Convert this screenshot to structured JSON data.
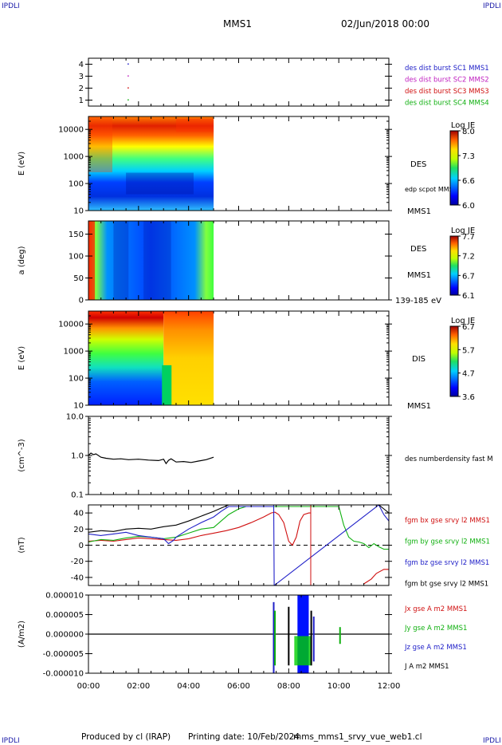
{
  "header": {
    "corner_left": "IPDLI",
    "corner_right": "IPDLI",
    "mission": "MMS1",
    "date": "02/Jun/2018 00:00"
  },
  "footer": {
    "produced_by": "Produced by cl (IRAP)",
    "printing_date": "Printing date: 10/Feb/2024",
    "file": "mms_mms1_srvy_vue_web1.cl",
    "corner_left": "IPDLI",
    "corner_right": "IPDLI"
  },
  "chart_data": [
    {
      "type": "scatter",
      "panel": "burst-availability",
      "ylim": [
        0.5,
        4.5
      ],
      "yticks": [
        "1",
        "2",
        "3",
        "4"
      ],
      "legend": [
        {
          "name": "des dist burst SC1 MMS1",
          "color": "#2020c8"
        },
        {
          "name": "des dist burst SC2 MMS2",
          "color": "#c020c0"
        },
        {
          "name": "des dist burst SC3 MMS3",
          "color": "#d01010"
        },
        {
          "name": "des dist burst SC4 MMS4",
          "color": "#10b010"
        }
      ],
      "points": [
        {
          "x": 1.58,
          "y": 4
        },
        {
          "x": 1.58,
          "y": 3
        },
        {
          "x": 1.58,
          "y": 2
        },
        {
          "x": 1.58,
          "y": 1
        }
      ]
    },
    {
      "type": "heatmap",
      "panel": "des-energy-spectrogram",
      "ylabel": "E (eV)",
      "ylog": true,
      "ylim": [
        10,
        30000
      ],
      "yticks": [
        "10",
        "100",
        "1000",
        "10000"
      ],
      "data_end_hour": 5.0,
      "label": "DES",
      "overlay": "edp scpot MMS1",
      "right_label": "MMS1",
      "colorbar": {
        "title": "Log JE",
        "ticks": [
          "6.0",
          "6.6",
          "7.3",
          "8.0"
        ]
      }
    },
    {
      "type": "heatmap",
      "panel": "des-pitch-angle",
      "ylabel": "a (deg)",
      "ylim": [
        0,
        180
      ],
      "yticks": [
        "0",
        "50",
        "100",
        "150"
      ],
      "data_end_hour": 5.0,
      "label": "DES",
      "sublabel": "MMS1",
      "energy_range": "139-185 eV",
      "colorbar": {
        "title": "Log JE",
        "ticks": [
          "6.1",
          "6.7",
          "7.2",
          "7.7"
        ]
      }
    },
    {
      "type": "heatmap",
      "panel": "dis-energy-spectrogram",
      "ylabel": "E (eV)",
      "ylog": true,
      "ylim": [
        10,
        30000
      ],
      "yticks": [
        "10",
        "100",
        "1000",
        "10000"
      ],
      "data_end_hour": 5.0,
      "label": "DIS",
      "right_label": "MMS1",
      "colorbar": {
        "title": "Log JE",
        "ticks": [
          "3.6",
          "4.7",
          "5.7",
          "6.7"
        ]
      }
    },
    {
      "type": "line",
      "panel": "number-density",
      "ylabel": "(cm^-3)",
      "ylog": true,
      "ylim": [
        0.1,
        10
      ],
      "yticks": [
        "0.1",
        "1.0",
        "10.0"
      ],
      "series": [
        {
          "name": "des numberdensity fast M",
          "color": "#000000",
          "x": [
            0.0,
            0.1,
            0.2,
            0.3,
            0.5,
            0.7,
            1.0,
            1.3,
            1.6,
            2.0,
            2.4,
            2.8,
            3.0,
            3.1,
            3.2,
            3.3,
            3.5,
            3.8,
            4.1,
            4.4,
            4.7,
            5.0
          ],
          "y": [
            1.0,
            1.15,
            1.05,
            1.1,
            0.9,
            0.85,
            0.8,
            0.82,
            0.78,
            0.8,
            0.76,
            0.74,
            0.8,
            0.62,
            0.75,
            0.82,
            0.68,
            0.7,
            0.66,
            0.72,
            0.78,
            0.9
          ]
        }
      ]
    },
    {
      "type": "line",
      "panel": "magnetic-field",
      "ylabel": "(nT)",
      "ylim": [
        -50,
        50
      ],
      "yticks": [
        "-40",
        "-20",
        "0",
        "20",
        "40"
      ],
      "zero_line": true,
      "series": [
        {
          "name": "fgm bx gse srvy l2 MMS1",
          "color": "#d01010",
          "x": [
            0,
            0.5,
            1,
            1.5,
            2,
            2.5,
            3,
            3.5,
            4,
            4.5,
            5,
            5.5,
            6,
            6.5,
            7,
            7.3,
            7.45,
            7.6,
            7.8,
            8.0,
            8.15,
            8.3,
            8.45,
            8.6,
            8.8,
            8.88,
            8.9,
            9.0,
            9.5,
            10,
            10.5,
            11,
            11.3,
            11.5,
            11.8,
            12
          ],
          "y": [
            5,
            6,
            5,
            7,
            9,
            8,
            7,
            6,
            8,
            12,
            15,
            18,
            22,
            28,
            35,
            40,
            41,
            38,
            28,
            5,
            0,
            10,
            30,
            38,
            40,
            40,
            null,
            null,
            null,
            null,
            null,
            -48,
            -42,
            -35,
            -30,
            -30
          ]
        },
        {
          "name": "fgm by gse srvy l2 MMS1",
          "color": "#10b010",
          "x": [
            0,
            0.5,
            1,
            1.5,
            2,
            2.5,
            3,
            3.5,
            4,
            4.5,
            5,
            5.3,
            5.6,
            6.0,
            6.3,
            10.0,
            10.2,
            10.4,
            10.6,
            10.8,
            11,
            11.2,
            11.4,
            11.6,
            11.8,
            12
          ],
          "y": [
            4,
            7,
            6,
            9,
            11,
            10,
            8,
            10,
            15,
            20,
            22,
            30,
            38,
            45,
            48,
            48,
            25,
            10,
            5,
            4,
            2,
            -3,
            2,
            -2,
            -5,
            -5
          ]
        },
        {
          "name": "fgm bz gse srvy l2 MMS1",
          "color": "#2020c8",
          "x": [
            0,
            0.5,
            1,
            1.5,
            2,
            2.5,
            3,
            3.2,
            3.4,
            3.5,
            4,
            4.5,
            5,
            5.3,
            5.6,
            7.4,
            7.4,
            7.42,
            11.6,
            11.8,
            12
          ],
          "y": [
            14,
            12,
            14,
            16,
            12,
            10,
            8,
            2,
            6,
            10,
            20,
            28,
            35,
            42,
            48,
            48,
            50,
            -50,
            50,
            38,
            30
          ]
        },
        {
          "name": "fgm bt gse srvy l2 MMS1",
          "color": "#000000",
          "x": [
            0,
            0.5,
            1,
            1.5,
            2,
            2.5,
            3,
            3.5,
            4,
            4.5,
            5,
            5.3,
            5.6,
            11.6,
            11.8,
            12
          ],
          "y": [
            16,
            18,
            17,
            20,
            21,
            20,
            23,
            25,
            30,
            36,
            42,
            46,
            50,
            50,
            45,
            40
          ]
        }
      ]
    },
    {
      "type": "line",
      "panel": "current-density",
      "ylabel": "(A/m2)",
      "ylim": [
        -1e-05,
        1e-05
      ],
      "yticks": [
        "-0.000010",
        "-0.000005",
        "0.000000",
        "0.000005",
        "0.000010"
      ],
      "xlim": [
        0,
        12
      ],
      "xticks": [
        "00:00",
        "02:00",
        "04:00",
        "06:00",
        "08:00",
        "10:00",
        "12:00"
      ],
      "legend": [
        {
          "name": "Jx gse A m2 MMS1",
          "color": "#d01010"
        },
        {
          "name": "Jy gse A m2 MMS1",
          "color": "#10b010"
        },
        {
          "name": "Jz gse A m2 MMS1",
          "color": "#2020c8"
        },
        {
          "name": "J A m2 MMS1",
          "color": "#000000"
        }
      ],
      "spikes": [
        {
          "x": 7.4,
          "top": 8.2e-06,
          "bottom": -1e-05,
          "color": "#2020c8"
        },
        {
          "x": 7.45,
          "top": 6e-06,
          "bottom": -8e-06,
          "color": "#10b010"
        },
        {
          "x": 8.0,
          "top": 7e-06,
          "bottom": -8e-06,
          "color": "#000000"
        },
        {
          "x": 8.9,
          "top": 6e-06,
          "bottom": -8e-06,
          "color": "#000000"
        },
        {
          "x": 9.0,
          "top": 4.5e-06,
          "bottom": -7e-06,
          "color": "#2020c8"
        },
        {
          "x": 10.05,
          "top": 1.8e-06,
          "bottom": -2.5e-06,
          "color": "#10b010"
        }
      ],
      "block": {
        "x0": 8.35,
        "x1": 8.8,
        "color": "#0010ff"
      }
    }
  ]
}
